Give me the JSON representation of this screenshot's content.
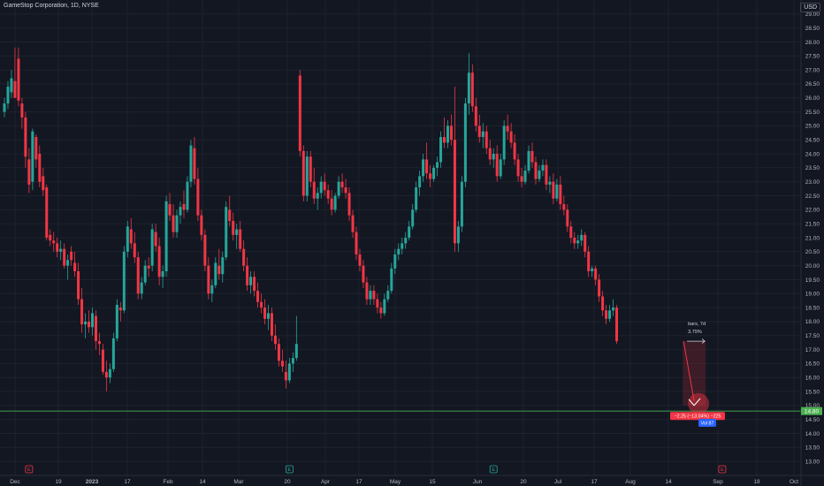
{
  "header": {
    "title": "GameStop Corporation, 1D, NYSE",
    "currency": "USD"
  },
  "colors": {
    "background": "#131722",
    "grid": "#1e222d",
    "up": "#26a69a",
    "down": "#f23645",
    "axis_text": "#b2b5be",
    "hline": "#4caf50",
    "annotation": "#f23645",
    "bars_badge": "#2962ff"
  },
  "chart_data": {
    "type": "candlestick",
    "title": "GameStop Corporation, 1D, NYSE",
    "ylim": [
      12.5,
      29.5
    ],
    "y_ticks": [
      "13.00",
      "13.50",
      "14.00",
      "14.50",
      "15.00",
      "15.50",
      "16.00",
      "16.50",
      "17.00",
      "17.50",
      "18.00",
      "18.50",
      "19.00",
      "19.50",
      "20.00",
      "20.50",
      "21.00",
      "21.50",
      "22.00",
      "22.50",
      "23.00",
      "23.50",
      "24.00",
      "24.50",
      "25.00",
      "25.50",
      "26.00",
      "26.50",
      "27.00",
      "27.50",
      "28.00",
      "28.50",
      "29.00"
    ],
    "x_ticks": [
      "Dec",
      "19",
      "2023",
      "17",
      "Feb",
      "14",
      "Mar",
      "20",
      "Apr",
      "17",
      "May",
      "15",
      "Jun",
      "20",
      "Jul",
      "17",
      "Aug",
      "14",
      "Sep",
      "18",
      "Oct"
    ],
    "grid": true,
    "last_price_label": "14.80",
    "horizontal_line_price": 14.8,
    "event_markers": [
      {
        "label": "E",
        "index": 7
      },
      {
        "label": "E",
        "index": 81
      },
      {
        "label": "E",
        "index": 139
      },
      {
        "label": "E",
        "index": 204
      }
    ],
    "projection": {
      "from": {
        "index": 193,
        "price": 17.3
      },
      "to": {
        "index": 196,
        "price": 15.0
      },
      "info_line1": "bars, 7d",
      "info_line2": "3.79%",
      "change_label": "−2.25 (−13.04%) −225",
      "bars_label": "Vol 87"
    },
    "candles": [
      {
        "o": 25.5,
        "h": 26.0,
        "l": 25.3,
        "c": 25.8
      },
      {
        "o": 25.8,
        "h": 26.6,
        "l": 25.6,
        "c": 26.4
      },
      {
        "o": 26.2,
        "h": 27.0,
        "l": 26.0,
        "c": 26.7
      },
      {
        "o": 26.6,
        "h": 27.8,
        "l": 26.1,
        "c": 26.0
      },
      {
        "o": 27.4,
        "h": 27.8,
        "l": 25.7,
        "c": 25.9
      },
      {
        "o": 25.8,
        "h": 26.0,
        "l": 24.9,
        "c": 25.3
      },
      {
        "o": 25.3,
        "h": 25.5,
        "l": 23.5,
        "c": 23.9
      },
      {
        "o": 23.8,
        "h": 24.2,
        "l": 22.6,
        "c": 22.9
      },
      {
        "o": 23.0,
        "h": 24.9,
        "l": 22.7,
        "c": 24.8
      },
      {
        "o": 24.6,
        "h": 24.7,
        "l": 23.5,
        "c": 23.8
      },
      {
        "o": 24.0,
        "h": 24.3,
        "l": 22.8,
        "c": 23.0
      },
      {
        "o": 23.2,
        "h": 23.5,
        "l": 22.5,
        "c": 22.7
      },
      {
        "o": 22.8,
        "h": 22.9,
        "l": 20.9,
        "c": 21.0
      },
      {
        "o": 21.1,
        "h": 21.3,
        "l": 20.7,
        "c": 20.9
      },
      {
        "o": 20.9,
        "h": 21.2,
        "l": 20.5,
        "c": 20.8
      },
      {
        "o": 20.8,
        "h": 21.0,
        "l": 20.3,
        "c": 20.5
      },
      {
        "o": 20.5,
        "h": 20.9,
        "l": 20.2,
        "c": 20.6
      },
      {
        "o": 20.6,
        "h": 20.8,
        "l": 19.9,
        "c": 20.0
      },
      {
        "o": 20.0,
        "h": 20.4,
        "l": 19.5,
        "c": 20.2
      },
      {
        "o": 20.5,
        "h": 20.7,
        "l": 20.0,
        "c": 20.2
      },
      {
        "o": 20.1,
        "h": 20.5,
        "l": 19.6,
        "c": 19.8
      },
      {
        "o": 19.8,
        "h": 20.1,
        "l": 18.6,
        "c": 18.8
      },
      {
        "o": 18.8,
        "h": 19.2,
        "l": 17.6,
        "c": 17.9
      },
      {
        "o": 17.9,
        "h": 18.3,
        "l": 17.4,
        "c": 18.0
      },
      {
        "o": 18.0,
        "h": 18.4,
        "l": 17.6,
        "c": 17.8
      },
      {
        "o": 17.8,
        "h": 18.5,
        "l": 17.5,
        "c": 18.3
      },
      {
        "o": 18.2,
        "h": 18.4,
        "l": 17.0,
        "c": 17.3
      },
      {
        "o": 17.3,
        "h": 17.6,
        "l": 16.8,
        "c": 17.2
      },
      {
        "o": 17.0,
        "h": 17.2,
        "l": 16.1,
        "c": 16.2
      },
      {
        "o": 16.2,
        "h": 16.6,
        "l": 15.5,
        "c": 16.0
      },
      {
        "o": 16.0,
        "h": 16.5,
        "l": 15.8,
        "c": 16.3
      },
      {
        "o": 16.3,
        "h": 17.6,
        "l": 16.2,
        "c": 17.4
      },
      {
        "o": 17.4,
        "h": 18.8,
        "l": 17.3,
        "c": 18.6
      },
      {
        "o": 18.5,
        "h": 18.7,
        "l": 18.0,
        "c": 18.4
      },
      {
        "o": 18.4,
        "h": 20.7,
        "l": 18.3,
        "c": 20.5
      },
      {
        "o": 20.5,
        "h": 21.6,
        "l": 20.3,
        "c": 21.4
      },
      {
        "o": 21.3,
        "h": 21.7,
        "l": 20.6,
        "c": 20.8
      },
      {
        "o": 20.8,
        "h": 21.2,
        "l": 20.1,
        "c": 20.3
      },
      {
        "o": 20.3,
        "h": 20.5,
        "l": 18.8,
        "c": 19.0
      },
      {
        "o": 19.0,
        "h": 19.6,
        "l": 18.8,
        "c": 19.4
      },
      {
        "o": 19.4,
        "h": 20.2,
        "l": 19.3,
        "c": 20.0
      },
      {
        "o": 20.0,
        "h": 20.3,
        "l": 19.6,
        "c": 19.9
      },
      {
        "o": 20.0,
        "h": 21.5,
        "l": 19.8,
        "c": 21.3
      },
      {
        "o": 21.2,
        "h": 21.5,
        "l": 20.5,
        "c": 20.7
      },
      {
        "o": 20.7,
        "h": 21.0,
        "l": 19.3,
        "c": 19.6
      },
      {
        "o": 19.6,
        "h": 20.0,
        "l": 19.2,
        "c": 19.8
      },
      {
        "o": 19.8,
        "h": 22.5,
        "l": 19.6,
        "c": 22.3
      },
      {
        "o": 22.2,
        "h": 22.6,
        "l": 21.6,
        "c": 21.8
      },
      {
        "o": 21.8,
        "h": 22.2,
        "l": 21.0,
        "c": 21.2
      },
      {
        "o": 21.2,
        "h": 22.0,
        "l": 21.0,
        "c": 21.8
      },
      {
        "o": 21.8,
        "h": 22.3,
        "l": 21.5,
        "c": 22.1
      },
      {
        "o": 22.2,
        "h": 22.7,
        "l": 21.7,
        "c": 22.0
      },
      {
        "o": 22.0,
        "h": 23.2,
        "l": 21.9,
        "c": 23.0
      },
      {
        "o": 23.0,
        "h": 24.5,
        "l": 22.8,
        "c": 24.3
      },
      {
        "o": 24.2,
        "h": 24.6,
        "l": 22.9,
        "c": 23.1
      },
      {
        "o": 23.1,
        "h": 23.5,
        "l": 21.6,
        "c": 21.8
      },
      {
        "o": 21.8,
        "h": 22.0,
        "l": 20.9,
        "c": 21.1
      },
      {
        "o": 21.1,
        "h": 21.3,
        "l": 19.8,
        "c": 20.0
      },
      {
        "o": 20.0,
        "h": 20.3,
        "l": 18.8,
        "c": 19.0
      },
      {
        "o": 19.0,
        "h": 19.5,
        "l": 18.7,
        "c": 19.3
      },
      {
        "o": 19.3,
        "h": 20.3,
        "l": 19.2,
        "c": 20.1
      },
      {
        "o": 20.0,
        "h": 20.6,
        "l": 19.5,
        "c": 19.7
      },
      {
        "o": 19.7,
        "h": 20.5,
        "l": 19.4,
        "c": 20.3
      },
      {
        "o": 20.3,
        "h": 22.3,
        "l": 20.2,
        "c": 22.1
      },
      {
        "o": 22.0,
        "h": 22.5,
        "l": 21.4,
        "c": 21.6
      },
      {
        "o": 21.6,
        "h": 21.9,
        "l": 20.9,
        "c": 21.1
      },
      {
        "o": 21.1,
        "h": 21.5,
        "l": 20.6,
        "c": 21.3
      },
      {
        "o": 21.3,
        "h": 21.6,
        "l": 20.5,
        "c": 20.6
      },
      {
        "o": 20.6,
        "h": 20.9,
        "l": 19.8,
        "c": 20.0
      },
      {
        "o": 20.0,
        "h": 20.3,
        "l": 19.1,
        "c": 19.3
      },
      {
        "o": 19.3,
        "h": 19.8,
        "l": 19.0,
        "c": 19.6
      },
      {
        "o": 19.6,
        "h": 19.8,
        "l": 18.9,
        "c": 19.1
      },
      {
        "o": 19.1,
        "h": 19.4,
        "l": 18.5,
        "c": 18.7
      },
      {
        "o": 18.7,
        "h": 19.0,
        "l": 18.3,
        "c": 18.5
      },
      {
        "o": 18.5,
        "h": 18.8,
        "l": 17.9,
        "c": 18.1
      },
      {
        "o": 18.1,
        "h": 18.6,
        "l": 17.7,
        "c": 18.3
      },
      {
        "o": 18.3,
        "h": 18.5,
        "l": 17.3,
        "c": 17.5
      },
      {
        "o": 17.5,
        "h": 17.9,
        "l": 17.0,
        "c": 17.2
      },
      {
        "o": 17.2,
        "h": 17.4,
        "l": 16.4,
        "c": 16.6
      },
      {
        "o": 16.6,
        "h": 17.0,
        "l": 16.2,
        "c": 16.4
      },
      {
        "o": 16.2,
        "h": 16.6,
        "l": 15.6,
        "c": 15.9
      },
      {
        "o": 15.9,
        "h": 16.7,
        "l": 15.8,
        "c": 16.5
      },
      {
        "o": 16.5,
        "h": 16.9,
        "l": 16.2,
        "c": 16.7
      },
      {
        "o": 16.7,
        "h": 18.2,
        "l": 16.6,
        "c": 17.2
      },
      {
        "o": 26.8,
        "h": 27.0,
        "l": 23.9,
        "c": 24.1
      },
      {
        "o": 24.1,
        "h": 24.3,
        "l": 22.3,
        "c": 22.5
      },
      {
        "o": 22.5,
        "h": 24.1,
        "l": 22.3,
        "c": 23.9
      },
      {
        "o": 23.9,
        "h": 24.1,
        "l": 22.8,
        "c": 23.0
      },
      {
        "o": 23.0,
        "h": 23.5,
        "l": 22.2,
        "c": 22.4
      },
      {
        "o": 22.4,
        "h": 22.8,
        "l": 22.0,
        "c": 22.6
      },
      {
        "o": 22.6,
        "h": 23.2,
        "l": 22.4,
        "c": 23.0
      },
      {
        "o": 23.0,
        "h": 23.3,
        "l": 22.5,
        "c": 22.7
      },
      {
        "o": 22.7,
        "h": 22.9,
        "l": 22.2,
        "c": 22.4
      },
      {
        "o": 22.4,
        "h": 22.7,
        "l": 21.8,
        "c": 22.0
      },
      {
        "o": 22.0,
        "h": 22.6,
        "l": 21.9,
        "c": 22.5
      },
      {
        "o": 22.5,
        "h": 23.2,
        "l": 22.4,
        "c": 23.0
      },
      {
        "o": 23.0,
        "h": 23.3,
        "l": 22.6,
        "c": 22.8
      },
      {
        "o": 22.8,
        "h": 23.1,
        "l": 22.4,
        "c": 22.6
      },
      {
        "o": 22.6,
        "h": 22.8,
        "l": 21.6,
        "c": 21.8
      },
      {
        "o": 21.8,
        "h": 22.0,
        "l": 21.0,
        "c": 21.2
      },
      {
        "o": 21.2,
        "h": 21.4,
        "l": 20.2,
        "c": 20.4
      },
      {
        "o": 20.4,
        "h": 20.6,
        "l": 19.8,
        "c": 20.0
      },
      {
        "o": 20.0,
        "h": 20.2,
        "l": 19.2,
        "c": 19.4
      },
      {
        "o": 19.4,
        "h": 19.6,
        "l": 18.6,
        "c": 18.8
      },
      {
        "o": 18.8,
        "h": 19.3,
        "l": 18.6,
        "c": 19.1
      },
      {
        "o": 19.1,
        "h": 19.3,
        "l": 18.6,
        "c": 18.8
      },
      {
        "o": 18.8,
        "h": 19.0,
        "l": 18.3,
        "c": 18.5
      },
      {
        "o": 18.5,
        "h": 18.7,
        "l": 18.1,
        "c": 18.3
      },
      {
        "o": 18.3,
        "h": 19.0,
        "l": 18.2,
        "c": 18.8
      },
      {
        "o": 18.8,
        "h": 19.3,
        "l": 18.7,
        "c": 19.1
      },
      {
        "o": 19.1,
        "h": 20.1,
        "l": 19.0,
        "c": 19.9
      },
      {
        "o": 19.9,
        "h": 20.6,
        "l": 19.7,
        "c": 20.4
      },
      {
        "o": 20.4,
        "h": 20.8,
        "l": 20.2,
        "c": 20.6
      },
      {
        "o": 20.6,
        "h": 21.0,
        "l": 20.4,
        "c": 20.8
      },
      {
        "o": 20.8,
        "h": 21.2,
        "l": 20.6,
        "c": 21.0
      },
      {
        "o": 21.0,
        "h": 21.6,
        "l": 20.9,
        "c": 21.4
      },
      {
        "o": 21.4,
        "h": 22.2,
        "l": 21.3,
        "c": 22.0
      },
      {
        "o": 22.0,
        "h": 23.0,
        "l": 21.9,
        "c": 22.8
      },
      {
        "o": 22.8,
        "h": 23.4,
        "l": 22.5,
        "c": 23.2
      },
      {
        "o": 23.2,
        "h": 24.0,
        "l": 23.0,
        "c": 23.8
      },
      {
        "o": 23.8,
        "h": 24.4,
        "l": 23.1,
        "c": 23.3
      },
      {
        "o": 23.3,
        "h": 23.6,
        "l": 22.8,
        "c": 23.1
      },
      {
        "o": 23.1,
        "h": 23.6,
        "l": 23.0,
        "c": 23.5
      },
      {
        "o": 23.5,
        "h": 23.9,
        "l": 23.2,
        "c": 23.7
      },
      {
        "o": 23.7,
        "h": 24.8,
        "l": 23.5,
        "c": 24.6
      },
      {
        "o": 24.6,
        "h": 25.3,
        "l": 24.2,
        "c": 24.4
      },
      {
        "o": 24.4,
        "h": 25.2,
        "l": 24.2,
        "c": 25.0
      },
      {
        "o": 25.0,
        "h": 25.4,
        "l": 24.3,
        "c": 24.5
      },
      {
        "o": 24.5,
        "h": 26.4,
        "l": 20.5,
        "c": 20.8
      },
      {
        "o": 20.8,
        "h": 21.6,
        "l": 20.5,
        "c": 21.4
      },
      {
        "o": 21.4,
        "h": 23.2,
        "l": 21.2,
        "c": 23.0
      },
      {
        "o": 23.0,
        "h": 26.0,
        "l": 22.8,
        "c": 25.8
      },
      {
        "o": 25.8,
        "h": 27.6,
        "l": 25.4,
        "c": 26.9
      },
      {
        "o": 26.9,
        "h": 27.2,
        "l": 25.5,
        "c": 25.7
      },
      {
        "o": 25.7,
        "h": 26.0,
        "l": 24.8,
        "c": 25.0
      },
      {
        "o": 25.0,
        "h": 25.4,
        "l": 24.4,
        "c": 24.6
      },
      {
        "o": 24.6,
        "h": 25.1,
        "l": 24.2,
        "c": 24.8
      },
      {
        "o": 24.8,
        "h": 25.0,
        "l": 24.0,
        "c": 24.2
      },
      {
        "o": 24.2,
        "h": 24.5,
        "l": 23.6,
        "c": 23.8
      },
      {
        "o": 23.8,
        "h": 24.2,
        "l": 23.5,
        "c": 24.0
      },
      {
        "o": 24.0,
        "h": 24.3,
        "l": 23.0,
        "c": 23.2
      },
      {
        "o": 23.2,
        "h": 24.0,
        "l": 23.1,
        "c": 23.8
      },
      {
        "o": 23.8,
        "h": 25.2,
        "l": 23.6,
        "c": 25.0
      },
      {
        "o": 25.0,
        "h": 25.4,
        "l": 24.5,
        "c": 24.8
      },
      {
        "o": 24.8,
        "h": 25.1,
        "l": 24.2,
        "c": 24.4
      },
      {
        "o": 24.4,
        "h": 24.7,
        "l": 23.6,
        "c": 23.8
      },
      {
        "o": 23.8,
        "h": 24.0,
        "l": 23.0,
        "c": 23.2
      },
      {
        "o": 23.2,
        "h": 23.5,
        "l": 22.8,
        "c": 23.0
      },
      {
        "o": 23.0,
        "h": 23.6,
        "l": 22.9,
        "c": 23.4
      },
      {
        "o": 23.4,
        "h": 24.3,
        "l": 23.3,
        "c": 24.1
      },
      {
        "o": 24.1,
        "h": 24.4,
        "l": 23.5,
        "c": 23.7
      },
      {
        "o": 23.7,
        "h": 23.9,
        "l": 22.9,
        "c": 23.1
      },
      {
        "o": 23.1,
        "h": 23.6,
        "l": 23.0,
        "c": 23.4
      },
      {
        "o": 23.4,
        "h": 23.8,
        "l": 23.2,
        "c": 23.6
      },
      {
        "o": 23.6,
        "h": 23.8,
        "l": 22.7,
        "c": 22.9
      },
      {
        "o": 22.9,
        "h": 23.2,
        "l": 22.6,
        "c": 23.0
      },
      {
        "o": 23.0,
        "h": 23.3,
        "l": 22.2,
        "c": 22.4
      },
      {
        "o": 22.4,
        "h": 23.1,
        "l": 22.3,
        "c": 22.9
      },
      {
        "o": 22.9,
        "h": 23.2,
        "l": 22.0,
        "c": 22.2
      },
      {
        "o": 22.2,
        "h": 22.5,
        "l": 21.8,
        "c": 22.0
      },
      {
        "o": 22.0,
        "h": 22.2,
        "l": 21.2,
        "c": 21.4
      },
      {
        "o": 21.4,
        "h": 21.6,
        "l": 20.8,
        "c": 21.0
      },
      {
        "o": 21.0,
        "h": 21.2,
        "l": 20.6,
        "c": 20.8
      },
      {
        "o": 20.8,
        "h": 21.1,
        "l": 20.6,
        "c": 20.9
      },
      {
        "o": 20.9,
        "h": 21.3,
        "l": 20.7,
        "c": 21.1
      },
      {
        "o": 21.1,
        "h": 21.2,
        "l": 20.3,
        "c": 20.5
      },
      {
        "o": 20.5,
        "h": 20.7,
        "l": 19.6,
        "c": 19.8
      },
      {
        "o": 19.8,
        "h": 20.0,
        "l": 19.6,
        "c": 19.9
      },
      {
        "o": 19.9,
        "h": 20.0,
        "l": 19.3,
        "c": 19.5
      },
      {
        "o": 19.5,
        "h": 19.7,
        "l": 18.7,
        "c": 18.9
      },
      {
        "o": 18.9,
        "h": 19.1,
        "l": 18.2,
        "c": 18.4
      },
      {
        "o": 18.4,
        "h": 18.6,
        "l": 17.9,
        "c": 18.1
      },
      {
        "o": 18.1,
        "h": 18.6,
        "l": 18.0,
        "c": 18.4
      },
      {
        "o": 18.4,
        "h": 18.8,
        "l": 18.2,
        "c": 18.5
      },
      {
        "o": 18.5,
        "h": 18.6,
        "l": 17.2,
        "c": 17.3
      }
    ]
  }
}
